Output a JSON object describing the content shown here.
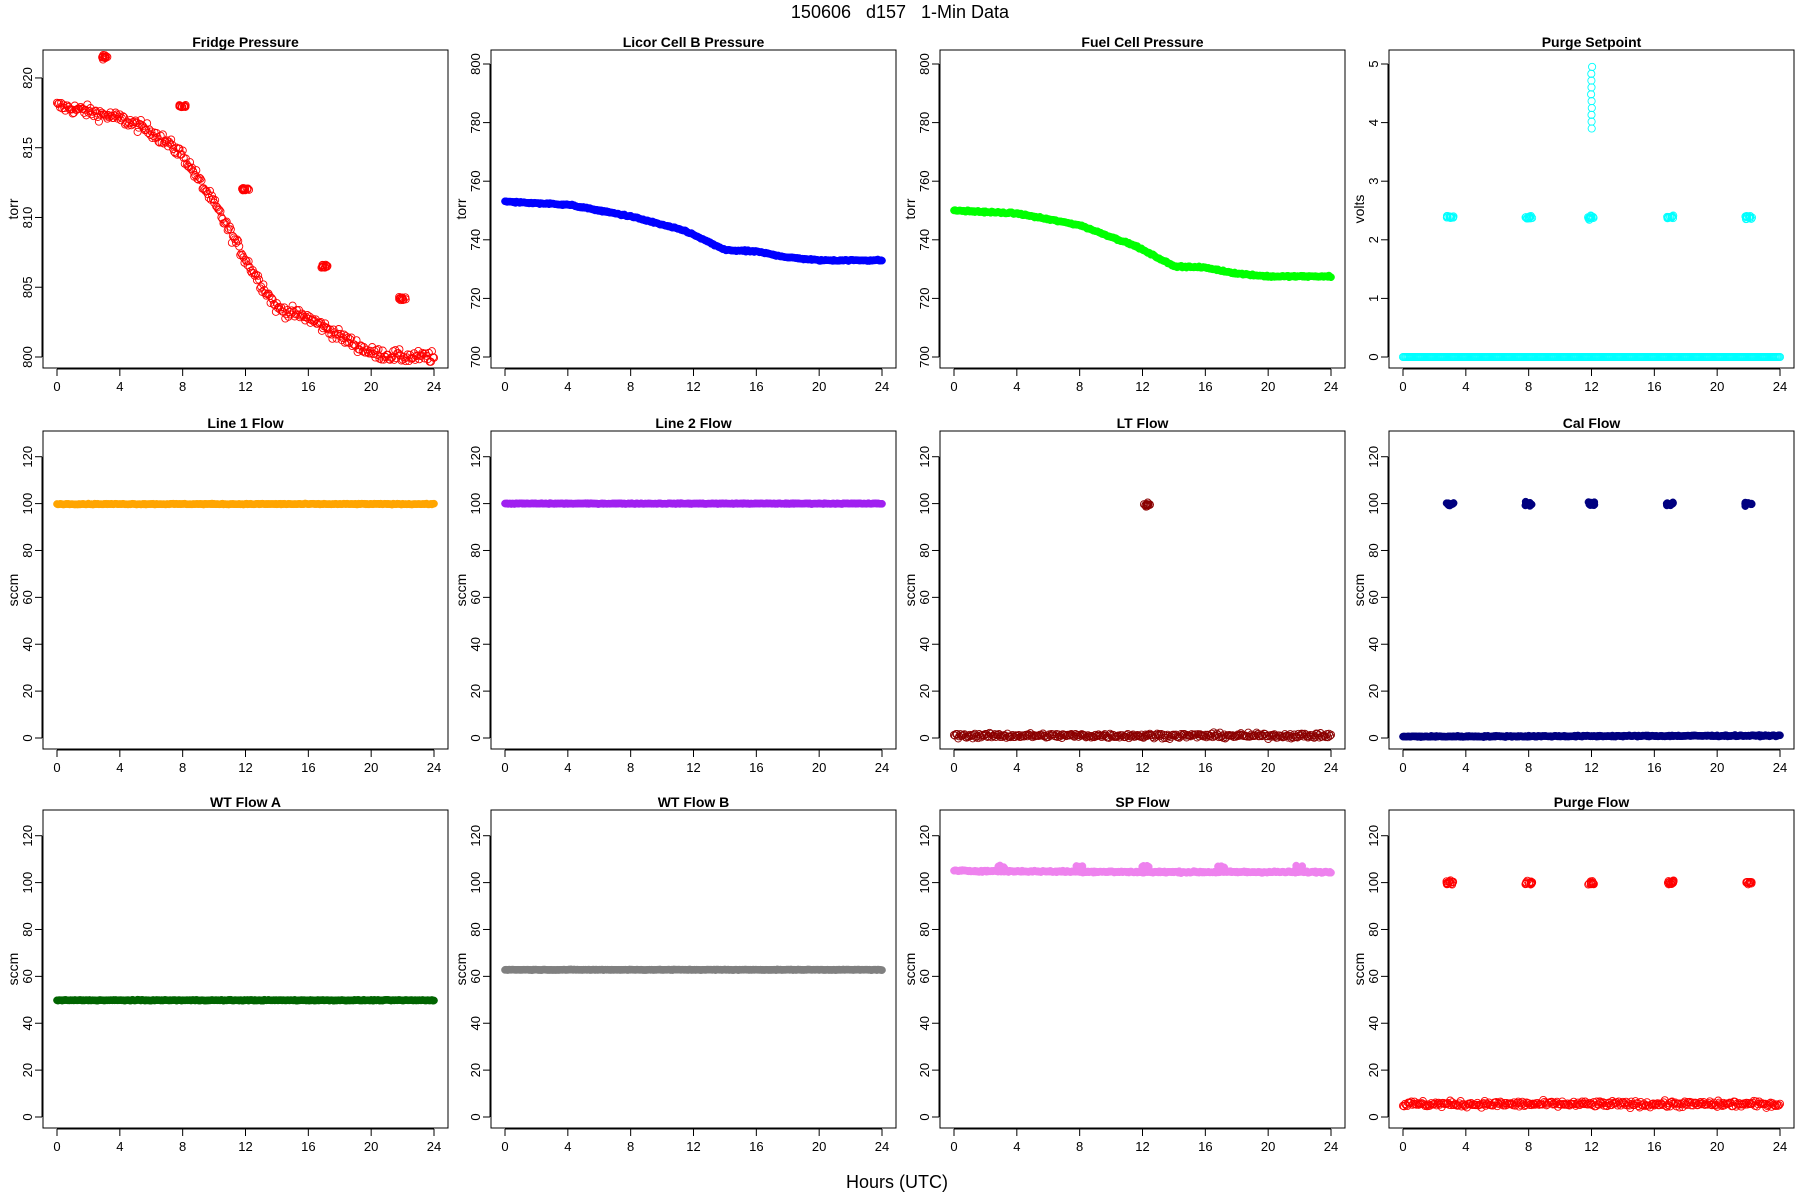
{
  "figure": {
    "title": "150606   d157   1-Min Data",
    "xlabel": "Hours (UTC)"
  },
  "chart_data": [
    {
      "type": "scatter",
      "title": "Fridge Pressure",
      "ylabel": "torr",
      "color": "#ff0000",
      "marker": "open-circle",
      "xlim": [
        0,
        24
      ],
      "ylim": [
        800,
        821
      ],
      "x_ticks": [
        0,
        4,
        8,
        12,
        16,
        20,
        24
      ],
      "y_ticks": [
        800,
        805,
        810,
        815,
        820
      ],
      "series": [
        {
          "trend": [
            [
              0,
              818
            ],
            [
              2,
              817.6
            ],
            [
              4,
              817.1
            ],
            [
              6,
              816.2
            ],
            [
              8,
              814.5
            ],
            [
              10,
              811
            ],
            [
              12,
              807
            ],
            [
              14,
              803.5
            ],
            [
              16,
              802.8
            ],
            [
              18,
              801.5
            ],
            [
              20,
              800.3
            ],
            [
              22,
              800
            ],
            [
              24,
              800
            ]
          ],
          "noise": 0.5,
          "excursions": [
            {
              "x": 3,
              "y": 821.5
            },
            {
              "x": 8,
              "y": 818
            },
            {
              "x": 12,
              "y": 812
            },
            {
              "x": 17,
              "y": 806.5
            },
            {
              "x": 22,
              "y": 804.2
            }
          ]
        }
      ]
    },
    {
      "type": "scatter",
      "title": "Licor Cell B Pressure",
      "ylabel": "torr",
      "color": "#0000ff",
      "marker": "filled-circle",
      "xlim": [
        0,
        24
      ],
      "ylim": [
        700,
        800
      ],
      "x_ticks": [
        0,
        4,
        8,
        12,
        16,
        20,
        24
      ],
      "y_ticks": [
        700,
        720,
        740,
        760,
        780,
        800
      ],
      "series": [
        {
          "trend": [
            [
              0,
              753
            ],
            [
              4,
              752
            ],
            [
              8,
              748
            ],
            [
              11.5,
              743
            ],
            [
              14,
              736.5
            ],
            [
              16,
              736
            ],
            [
              18,
              734
            ],
            [
              20,
              733
            ],
            [
              24,
              733
            ]
          ],
          "noise": 0.3,
          "excursions": []
        }
      ]
    },
    {
      "type": "scatter",
      "title": "Fuel Cell Pressure",
      "ylabel": "torr",
      "color": "#00ff00",
      "marker": "filled-circle",
      "xlim": [
        0,
        24
      ],
      "ylim": [
        700,
        800
      ],
      "x_ticks": [
        0,
        4,
        8,
        12,
        16,
        20,
        24
      ],
      "y_ticks": [
        700,
        720,
        740,
        760,
        780,
        800
      ],
      "series": [
        {
          "trend": [
            [
              0,
              750
            ],
            [
              4,
              749
            ],
            [
              8,
              745
            ],
            [
              11.5,
              738
            ],
            [
              14,
              731
            ],
            [
              16,
              730.5
            ],
            [
              18,
              728.5
            ],
            [
              20,
              727.5
            ],
            [
              24,
              727.5
            ]
          ],
          "noise": 0.3,
          "excursions": []
        }
      ]
    },
    {
      "type": "scatter",
      "title": "Purge Setpoint",
      "ylabel": "volts",
      "color": "#00ffff",
      "marker": "open-circle",
      "xlim": [
        0,
        24
      ],
      "ylim": [
        0,
        5
      ],
      "x_ticks": [
        0,
        4,
        8,
        12,
        16,
        20,
        24
      ],
      "y_ticks": [
        0,
        1,
        2,
        3,
        4,
        5
      ],
      "series": [
        {
          "trend": [
            [
              0,
              0
            ],
            [
              24,
              0
            ]
          ],
          "noise": 0,
          "excursions": [
            {
              "x": 3,
              "y": 2.38
            },
            {
              "x": 8,
              "y": 2.38
            },
            {
              "x": 12,
              "y": 2.38
            },
            {
              "x": 17,
              "y": 2.38
            },
            {
              "x": 22,
              "y": 2.38
            }
          ],
          "spike": {
            "x": 12,
            "y_from": 3.9,
            "y_to": 4.95
          }
        }
      ]
    },
    {
      "type": "scatter",
      "title": "Line 1 Flow",
      "ylabel": "sccm",
      "color": "#ffa500",
      "marker": "filled-circle",
      "xlim": [
        0,
        24
      ],
      "ylim": [
        0,
        125
      ],
      "x_ticks": [
        0,
        4,
        8,
        12,
        16,
        20,
        24
      ],
      "y_ticks": [
        0,
        20,
        40,
        60,
        80,
        100,
        120
      ],
      "series": [
        {
          "trend": [
            [
              0,
              99.8
            ],
            [
              24,
              99.8
            ]
          ],
          "noise": 0.2,
          "excursions": []
        }
      ]
    },
    {
      "type": "scatter",
      "title": "Line 2 Flow",
      "ylabel": "sccm",
      "color": "#a020f0",
      "marker": "filled-circle",
      "xlim": [
        0,
        24
      ],
      "ylim": [
        0,
        125
      ],
      "x_ticks": [
        0,
        4,
        8,
        12,
        16,
        20,
        24
      ],
      "y_ticks": [
        0,
        20,
        40,
        60,
        80,
        100,
        120
      ],
      "series": [
        {
          "trend": [
            [
              0,
              100
            ],
            [
              24,
              100
            ]
          ],
          "noise": 0.2,
          "excursions": []
        }
      ]
    },
    {
      "type": "scatter",
      "title": "LT Flow",
      "ylabel": "sccm",
      "color": "#8b0000",
      "marker": "open-circle",
      "xlim": [
        0,
        24
      ],
      "ylim": [
        0,
        125
      ],
      "x_ticks": [
        0,
        4,
        8,
        12,
        16,
        20,
        24
      ],
      "y_ticks": [
        0,
        20,
        40,
        60,
        80,
        100,
        120
      ],
      "series": [
        {
          "trend": [
            [
              0,
              1
            ],
            [
              24,
              1
            ]
          ],
          "noise": 1.2,
          "excursions": [
            {
              "x": 12.3,
              "y": 99.5
            }
          ]
        }
      ]
    },
    {
      "type": "scatter",
      "title": "Cal Flow",
      "ylabel": "sccm",
      "color": "#000080",
      "marker": "filled-circle",
      "xlim": [
        0,
        24
      ],
      "ylim": [
        0,
        125
      ],
      "x_ticks": [
        0,
        4,
        8,
        12,
        16,
        20,
        24
      ],
      "y_ticks": [
        0,
        20,
        40,
        60,
        80,
        100,
        120
      ],
      "series": [
        {
          "trend": [
            [
              0,
              0.6
            ],
            [
              24,
              1
            ]
          ],
          "noise": 0.3,
          "excursions": [
            {
              "x": 3,
              "y": 99.8
            },
            {
              "x": 8,
              "y": 99.8
            },
            {
              "x": 12,
              "y": 99.8
            },
            {
              "x": 17,
              "y": 99.8
            },
            {
              "x": 22,
              "y": 99.8
            }
          ]
        }
      ]
    },
    {
      "type": "scatter",
      "title": "WT Flow A",
      "ylabel": "sccm",
      "color": "#006400",
      "marker": "filled-circle",
      "xlim": [
        0,
        24
      ],
      "ylim": [
        0,
        125
      ],
      "x_ticks": [
        0,
        4,
        8,
        12,
        16,
        20,
        24
      ],
      "y_ticks": [
        0,
        20,
        40,
        60,
        80,
        100,
        120
      ],
      "series": [
        {
          "trend": [
            [
              0,
              49.8
            ],
            [
              24,
              49.8
            ]
          ],
          "noise": 0.2,
          "excursions": []
        }
      ]
    },
    {
      "type": "scatter",
      "title": "WT Flow B",
      "ylabel": "sccm",
      "color": "#808080",
      "marker": "filled-circle",
      "xlim": [
        0,
        24
      ],
      "ylim": [
        0,
        125
      ],
      "x_ticks": [
        0,
        4,
        8,
        12,
        16,
        20,
        24
      ],
      "y_ticks": [
        0,
        20,
        40,
        60,
        80,
        100,
        120
      ],
      "series": [
        {
          "trend": [
            [
              0,
              62.8
            ],
            [
              24,
              62.8
            ]
          ],
          "noise": 0.15,
          "excursions": []
        }
      ]
    },
    {
      "type": "scatter",
      "title": "SP Flow",
      "ylabel": "sccm",
      "color": "#ee82ee",
      "marker": "filled-circle",
      "xlim": [
        0,
        24
      ],
      "ylim": [
        0,
        125
      ],
      "x_ticks": [
        0,
        4,
        8,
        12,
        16,
        20,
        24
      ],
      "y_ticks": [
        0,
        20,
        40,
        60,
        80,
        100,
        120
      ],
      "series": [
        {
          "trend": [
            [
              0,
              105
            ],
            [
              12,
              104.5
            ],
            [
              24,
              104.5
            ]
          ],
          "noise": 0.4,
          "excursions": [
            {
              "x": 3,
              "y": 106.5
            },
            {
              "x": 8,
              "y": 106.5
            },
            {
              "x": 12.2,
              "y": 106.5
            },
            {
              "x": 17,
              "y": 106.5
            },
            {
              "x": 22,
              "y": 106.5
            }
          ]
        }
      ]
    },
    {
      "type": "scatter",
      "title": "Purge Flow",
      "ylabel": "sccm",
      "color": "#ff0000",
      "marker": "open-circle",
      "xlim": [
        0,
        24
      ],
      "ylim": [
        0,
        125
      ],
      "x_ticks": [
        0,
        4,
        8,
        12,
        16,
        20,
        24
      ],
      "y_ticks": [
        0,
        20,
        40,
        60,
        80,
        100,
        120
      ],
      "series": [
        {
          "trend": [
            [
              0,
              5.5
            ],
            [
              24,
              5.5
            ]
          ],
          "noise": 1.5,
          "excursions": [
            {
              "x": 3,
              "y": 100
            },
            {
              "x": 8,
              "y": 100
            },
            {
              "x": 12,
              "y": 100
            },
            {
              "x": 17,
              "y": 100
            },
            {
              "x": 22,
              "y": 100
            }
          ]
        }
      ]
    }
  ]
}
